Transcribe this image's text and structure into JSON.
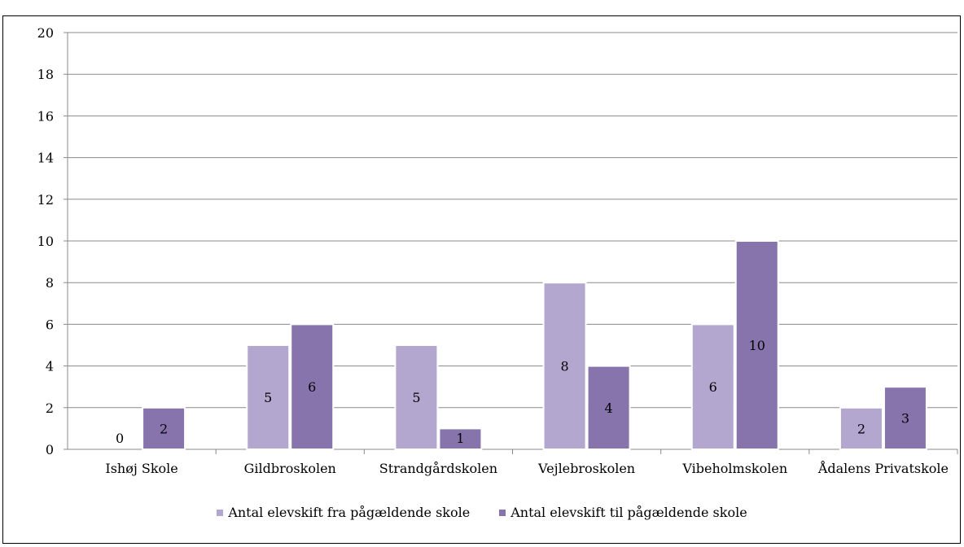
{
  "header_fragment": "",
  "chart_data": {
    "type": "bar",
    "categories": [
      "Ishøj Skole",
      "Gildbroskolen",
      "Strandgårdskolen",
      "Vejlebroskolen",
      "Vibeholmskolen",
      "Ådalens Privatskole"
    ],
    "series": [
      {
        "name": "Antal elevskift fra pågældende skole",
        "values": [
          0,
          5,
          5,
          8,
          6,
          2
        ],
        "color": "#b3a6cf"
      },
      {
        "name": "Antal elevskift til pågældende skole",
        "values": [
          2,
          6,
          1,
          4,
          10,
          3
        ],
        "color": "#8874ad"
      }
    ],
    "ylim": [
      0,
      20
    ],
    "yticks": [
      0,
      2,
      4,
      6,
      8,
      10,
      12,
      14,
      16,
      18,
      20
    ],
    "grid": true,
    "legend_position": "bottom"
  }
}
